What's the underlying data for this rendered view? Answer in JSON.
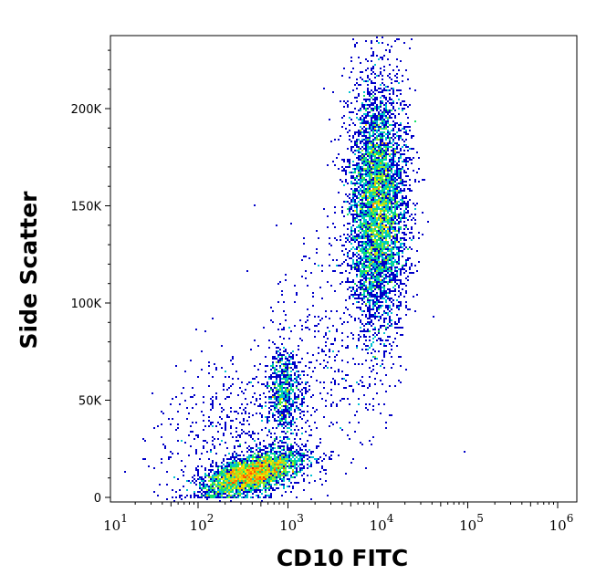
{
  "chart_data": {
    "type": "scatter",
    "subtype": "density-dot-plot",
    "title": "",
    "xlabel": "CD10 FITC",
    "ylabel": "Side Scatter",
    "x_scale": "log",
    "xlim": [
      7,
      1100000
    ],
    "ylim": [
      0,
      240000
    ],
    "x_ticks": [
      {
        "base": "10",
        "exp": "1",
        "value": 10
      },
      {
        "base": "10",
        "exp": "2",
        "value": 100
      },
      {
        "base": "10",
        "exp": "3",
        "value": 1000
      },
      {
        "base": "10",
        "exp": "4",
        "value": 10000
      },
      {
        "base": "10",
        "exp": "5",
        "value": 100000
      },
      {
        "base": "10",
        "exp": "6",
        "value": 1000000
      }
    ],
    "y_ticks": [
      {
        "label": "0",
        "value": 0
      },
      {
        "label": "50K",
        "value": 50000
      },
      {
        "label": "100K",
        "value": 100000
      },
      {
        "label": "150K",
        "value": 150000
      },
      {
        "label": "200K",
        "value": 200000
      }
    ],
    "grid": false,
    "colormap": [
      "#0000c8",
      "#00b4ff",
      "#00e070",
      "#f0f000",
      "#ff8000",
      "#ff0000"
    ],
    "populations": [
      {
        "x_center": 400,
        "x_log_sd": 0.28,
        "y_center": 12000,
        "y_sd": 6000,
        "count": 3200
      },
      {
        "x_center": 900,
        "x_log_sd": 0.1,
        "y_center": 55000,
        "y_sd": 11000,
        "count": 700
      },
      {
        "x_center": 10000,
        "x_log_sd": 0.16,
        "y_center": 150000,
        "y_sd": 32000,
        "count": 5200
      },
      {
        "x_center": 300,
        "x_log_sd": 0.45,
        "y_center": 30000,
        "y_sd": 22000,
        "count": 600
      },
      {
        "x_center": 3000,
        "x_log_sd": 0.35,
        "y_center": 80000,
        "y_sd": 30000,
        "count": 350
      }
    ]
  }
}
